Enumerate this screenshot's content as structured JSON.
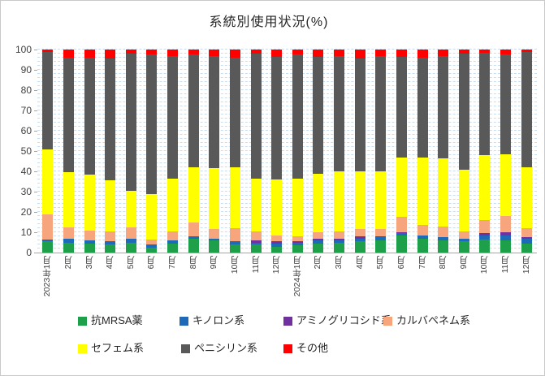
{
  "title": "系統別使用状況(%)",
  "chart_data": {
    "type": "bar",
    "stacked": true,
    "percent_stacked": true,
    "title": "系統別使用状況(%)",
    "xlabel": "",
    "ylabel": "",
    "ylim": [
      0,
      100
    ],
    "y_ticks": [
      0,
      10,
      20,
      30,
      40,
      50,
      60,
      70,
      80,
      90,
      100
    ],
    "gridline_step": 2,
    "gridline_color": "#c7ddf2",
    "legend_position": "bottom",
    "categories": [
      "2023年1月",
      "2月",
      "3月",
      "4月",
      "5月",
      "6月",
      "7月",
      "8月",
      "9月",
      "10月",
      "11月",
      "12月",
      "2024年1月",
      "2月",
      "3月",
      "4月",
      "5月",
      "6月",
      "7月",
      "8月",
      "9月",
      "10月",
      "11月",
      "12月"
    ],
    "series": [
      {
        "name": "抗MRSA薬",
        "color": "#1da049",
        "values": [
          5.5,
          5,
          4.5,
          4,
          5,
          2.5,
          4.5,
          7,
          6,
          4,
          4,
          3,
          3.5,
          4.5,
          5,
          5.5,
          6,
          8.5,
          7,
          6,
          5.5,
          6.5,
          6,
          4.5
        ]
      },
      {
        "name": "キノロン系",
        "color": "#1d6bb8",
        "values": [
          1,
          2,
          1.5,
          1.5,
          2,
          1.5,
          1.5,
          1,
          1,
          1.5,
          1,
          1.5,
          1.5,
          1.5,
          1,
          1.5,
          1.5,
          1,
          1.5,
          1.5,
          1.5,
          2,
          2.5,
          2.5
        ]
      },
      {
        "name": "アミノグリコシド系",
        "color": "#7030a0",
        "values": [
          0,
          0,
          0,
          0,
          0,
          0,
          0,
          0,
          0,
          0,
          1,
          1,
          0.5,
          1,
          1,
          1,
          0.5,
          0.5,
          0,
          0,
          0,
          1,
          1.5,
          0.5
        ]
      },
      {
        "name": "カルバペネム系",
        "color": "#f6a57c",
        "values": [
          12.5,
          5.5,
          5,
          5,
          5.5,
          2.5,
          4.5,
          7,
          4.5,
          6.5,
          4.5,
          3,
          2.5,
          3,
          3.5,
          3.5,
          3.5,
          7.5,
          5,
          5.5,
          3.5,
          6.5,
          8,
          4.5
        ]
      },
      {
        "name": "セフェム系",
        "color": "#ffff00",
        "values": [
          32,
          27,
          27.5,
          25,
          18,
          22.5,
          26,
          27,
          30,
          30,
          26,
          27.5,
          28.5,
          29,
          29.5,
          28.5,
          28.5,
          29.5,
          33.5,
          33.5,
          30.5,
          32,
          30.5,
          30
        ]
      },
      {
        "name": "ペニシリン系",
        "color": "#595959",
        "values": [
          48,
          56.5,
          57.5,
          60,
          67.5,
          68.5,
          60.5,
          55.5,
          55.5,
          54,
          61.5,
          60.5,
          61,
          57.5,
          57,
          55.5,
          57,
          49.5,
          49,
          50.5,
          57,
          50.5,
          49,
          57
        ]
      },
      {
        "name": "その他",
        "color": "#ff0000",
        "values": [
          1,
          4,
          4,
          4.5,
          2,
          2.5,
          3,
          2.5,
          3,
          4,
          2,
          3.5,
          2.5,
          3.5,
          3,
          4.5,
          3,
          3.5,
          4,
          3,
          2,
          1.5,
          2.5,
          1
        ]
      }
    ],
    "legend_rows": [
      [
        0,
        1,
        2,
        3
      ],
      [
        4,
        5,
        6
      ]
    ]
  }
}
